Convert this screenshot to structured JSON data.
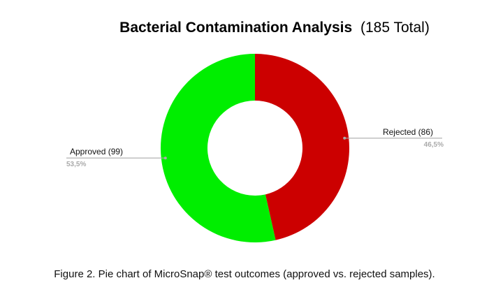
{
  "chart_data": {
    "type": "pie",
    "donut": true,
    "title": "Bacterial Contamination Analysis",
    "title_suffix": "(185 Total)",
    "slices": [
      {
        "label": "Rejected (86)",
        "value": 86,
        "percent_label": "46,5%",
        "color": "#cc0000"
      },
      {
        "label": "Approved (99)",
        "value": 99,
        "percent_label": "53,5%",
        "color": "#00ee00"
      }
    ],
    "legend": "none"
  },
  "caption": "Figure 2. Pie chart of MicroSnap® test outcomes (approved vs. rejected samples).",
  "colors": {
    "leader_line": "#aaaaaa",
    "percent_text": "#aaaaaa"
  }
}
